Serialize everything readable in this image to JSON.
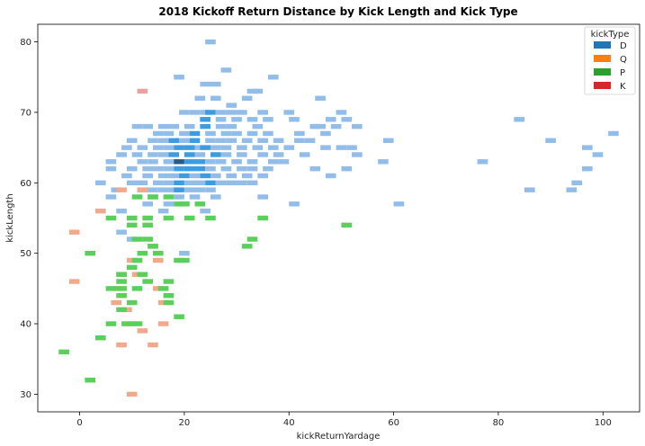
{
  "chart_data": {
    "type": "heatmap",
    "title": "2018 Kickoff Return Distance by Kick Length and Kick Type",
    "xlabel": "kickReturnYardage",
    "ylabel": "kickLength",
    "xlim": [
      -8,
      107
    ],
    "ylim": [
      27.5,
      82.5
    ],
    "xticks": [
      0,
      20,
      40,
      60,
      80,
      100
    ],
    "yticks": [
      30,
      40,
      50,
      60,
      70,
      80
    ],
    "grid": false,
    "legend": {
      "title": "kickType",
      "placement": "top-right",
      "entries": [
        {
          "label": "D",
          "color": "#1f77b4"
        },
        {
          "label": "Q",
          "color": "#ff7f0e"
        },
        {
          "label": "P",
          "color": "#2ca02c"
        },
        {
          "label": "K",
          "color": "#d62728"
        }
      ]
    },
    "series": [
      {
        "name": "D",
        "light_color": "#92bde9",
        "mid_color": "#3d9be0",
        "dark_color": "#2a5a82",
        "cells": [
          [
            25,
            80,
            1
          ],
          [
            28,
            76,
            1
          ],
          [
            19,
            75,
            1
          ],
          [
            37,
            75,
            1
          ],
          [
            24,
            74,
            1
          ],
          [
            26,
            74,
            1
          ],
          [
            33,
            73,
            1
          ],
          [
            34,
            73,
            1
          ],
          [
            23,
            72,
            1
          ],
          [
            26,
            72,
            1
          ],
          [
            32,
            72,
            1
          ],
          [
            46,
            72,
            1
          ],
          [
            29,
            71,
            1
          ],
          [
            20,
            70,
            1
          ],
          [
            22,
            70,
            1
          ],
          [
            24,
            70,
            1
          ],
          [
            25,
            70,
            2
          ],
          [
            27,
            70,
            1
          ],
          [
            29,
            70,
            1
          ],
          [
            31,
            70,
            1
          ],
          [
            35,
            70,
            1
          ],
          [
            40,
            70,
            1
          ],
          [
            50,
            70,
            1
          ],
          [
            24,
            69,
            2
          ],
          [
            27,
            69,
            1
          ],
          [
            30,
            69,
            1
          ],
          [
            33,
            69,
            1
          ],
          [
            36,
            69,
            1
          ],
          [
            41,
            69,
            1
          ],
          [
            48,
            69,
            1
          ],
          [
            51,
            69,
            1
          ],
          [
            84,
            69,
            1
          ],
          [
            11,
            68,
            1
          ],
          [
            13,
            68,
            1
          ],
          [
            16,
            68,
            1
          ],
          [
            18,
            68,
            1
          ],
          [
            21,
            68,
            1
          ],
          [
            24,
            68,
            2
          ],
          [
            27,
            68,
            1
          ],
          [
            29,
            68,
            1
          ],
          [
            34,
            68,
            1
          ],
          [
            45,
            68,
            1
          ],
          [
            46,
            68,
            1
          ],
          [
            49,
            68,
            1
          ],
          [
            53,
            68,
            1
          ],
          [
            15,
            67,
            1
          ],
          [
            17,
            67,
            1
          ],
          [
            20,
            67,
            1
          ],
          [
            22,
            67,
            2
          ],
          [
            25,
            67,
            1
          ],
          [
            28,
            67,
            1
          ],
          [
            30,
            67,
            1
          ],
          [
            33,
            67,
            1
          ],
          [
            36,
            67,
            1
          ],
          [
            42,
            67,
            1
          ],
          [
            47,
            67,
            1
          ],
          [
            102,
            67,
            1
          ],
          [
            10,
            66,
            1
          ],
          [
            14,
            66,
            1
          ],
          [
            16,
            66,
            1
          ],
          [
            18,
            66,
            2
          ],
          [
            20,
            66,
            1
          ],
          [
            22,
            66,
            2
          ],
          [
            25,
            66,
            1
          ],
          [
            27,
            66,
            1
          ],
          [
            29,
            66,
            1
          ],
          [
            32,
            66,
            1
          ],
          [
            35,
            66,
            1
          ],
          [
            38,
            66,
            1
          ],
          [
            42,
            66,
            1
          ],
          [
            44,
            66,
            1
          ],
          [
            59,
            66,
            1
          ],
          [
            90,
            66,
            1
          ],
          [
            9,
            65,
            1
          ],
          [
            12,
            65,
            1
          ],
          [
            15,
            65,
            1
          ],
          [
            17,
            65,
            1
          ],
          [
            19,
            65,
            2
          ],
          [
            21,
            65,
            2
          ],
          [
            23,
            65,
            1
          ],
          [
            24,
            65,
            2
          ],
          [
            26,
            65,
            1
          ],
          [
            28,
            65,
            1
          ],
          [
            31,
            65,
            1
          ],
          [
            34,
            65,
            1
          ],
          [
            37,
            65,
            1
          ],
          [
            40,
            65,
            1
          ],
          [
            47,
            65,
            1
          ],
          [
            50,
            65,
            1
          ],
          [
            52,
            65,
            1
          ],
          [
            97,
            65,
            1
          ],
          [
            8,
            64,
            1
          ],
          [
            11,
            64,
            1
          ],
          [
            14,
            64,
            1
          ],
          [
            16,
            64,
            1
          ],
          [
            18,
            64,
            2
          ],
          [
            21,
            64,
            2
          ],
          [
            23,
            64,
            1
          ],
          [
            26,
            64,
            2
          ],
          [
            28,
            64,
            1
          ],
          [
            31,
            64,
            1
          ],
          [
            35,
            64,
            1
          ],
          [
            38,
            64,
            1
          ],
          [
            43,
            64,
            1
          ],
          [
            53,
            64,
            1
          ],
          [
            99,
            64,
            1
          ],
          [
            6,
            63,
            1
          ],
          [
            12,
            63,
            1
          ],
          [
            14,
            63,
            1
          ],
          [
            17,
            63,
            1
          ],
          [
            19,
            63,
            3
          ],
          [
            21,
            63,
            2
          ],
          [
            23,
            63,
            2
          ],
          [
            25,
            63,
            1
          ],
          [
            27,
            63,
            1
          ],
          [
            30,
            63,
            1
          ],
          [
            33,
            63,
            1
          ],
          [
            37,
            63,
            1
          ],
          [
            39,
            63,
            1
          ],
          [
            58,
            63,
            1
          ],
          [
            77,
            63,
            1
          ],
          [
            6,
            62,
            1
          ],
          [
            10,
            62,
            1
          ],
          [
            13,
            62,
            1
          ],
          [
            15,
            62,
            1
          ],
          [
            17,
            62,
            1
          ],
          [
            19,
            62,
            2
          ],
          [
            21,
            62,
            2
          ],
          [
            23,
            62,
            2
          ],
          [
            25,
            62,
            1
          ],
          [
            28,
            62,
            1
          ],
          [
            31,
            62,
            1
          ],
          [
            33,
            62,
            1
          ],
          [
            36,
            62,
            1
          ],
          [
            45,
            62,
            1
          ],
          [
            51,
            62,
            1
          ],
          [
            97,
            62,
            1
          ],
          [
            9,
            61,
            1
          ],
          [
            13,
            61,
            1
          ],
          [
            16,
            61,
            1
          ],
          [
            18,
            61,
            1
          ],
          [
            20,
            61,
            2
          ],
          [
            22,
            61,
            1
          ],
          [
            24,
            61,
            2
          ],
          [
            26,
            61,
            1
          ],
          [
            29,
            61,
            1
          ],
          [
            32,
            61,
            1
          ],
          [
            35,
            61,
            1
          ],
          [
            48,
            61,
            1
          ],
          [
            4,
            60,
            1
          ],
          [
            10,
            60,
            1
          ],
          [
            12,
            60,
            1
          ],
          [
            15,
            60,
            1
          ],
          [
            17,
            60,
            1
          ],
          [
            19,
            60,
            2
          ],
          [
            21,
            60,
            1
          ],
          [
            23,
            60,
            1
          ],
          [
            25,
            60,
            2
          ],
          [
            27,
            60,
            1
          ],
          [
            29,
            60,
            1
          ],
          [
            31,
            60,
            1
          ],
          [
            33,
            60,
            1
          ],
          [
            95,
            60,
            1
          ],
          [
            7,
            59,
            1
          ],
          [
            12,
            59,
            1
          ],
          [
            14,
            59,
            1
          ],
          [
            16,
            59,
            1
          ],
          [
            18,
            59,
            1
          ],
          [
            19,
            59,
            2
          ],
          [
            21,
            59,
            1
          ],
          [
            23,
            59,
            1
          ],
          [
            25,
            59,
            1
          ],
          [
            86,
            59,
            1
          ],
          [
            94,
            59,
            1
          ],
          [
            6,
            58,
            1
          ],
          [
            14,
            58,
            1
          ],
          [
            19,
            58,
            1
          ],
          [
            22,
            58,
            1
          ],
          [
            26,
            58,
            1
          ],
          [
            35,
            58,
            1
          ],
          [
            13,
            57,
            1
          ],
          [
            17,
            57,
            1
          ],
          [
            20,
            57,
            1
          ],
          [
            41,
            57,
            1
          ],
          [
            61,
            57,
            1
          ],
          [
            8,
            56,
            1
          ],
          [
            16,
            56,
            1
          ],
          [
            24,
            56,
            1
          ],
          [
            8,
            53,
            1
          ],
          [
            10,
            52,
            1
          ],
          [
            20,
            50,
            1
          ]
        ]
      },
      {
        "name": "Q",
        "light_color": "#f2a98b",
        "cells": [
          [
            -1,
            53,
            1
          ],
          [
            -1,
            46,
            1
          ],
          [
            4,
            56,
            1
          ],
          [
            8,
            59,
            1
          ],
          [
            12,
            59,
            1
          ],
          [
            14,
            51,
            1
          ],
          [
            15,
            49,
            1
          ],
          [
            10,
            49,
            1
          ],
          [
            11,
            47,
            1
          ],
          [
            8,
            47,
            1
          ],
          [
            7,
            45,
            1
          ],
          [
            15,
            45,
            1
          ],
          [
            7,
            43,
            1
          ],
          [
            16,
            43,
            1
          ],
          [
            9,
            42,
            1
          ],
          [
            10,
            40,
            1
          ],
          [
            16,
            40,
            1
          ],
          [
            12,
            39,
            1
          ],
          [
            8,
            37,
            1
          ],
          [
            14,
            37,
            1
          ],
          [
            10,
            30,
            1
          ]
        ]
      },
      {
        "name": "P",
        "light_color": "#5bcf5b",
        "cells": [
          [
            11,
            58,
            1
          ],
          [
            14,
            58,
            1
          ],
          [
            17,
            58,
            1
          ],
          [
            19,
            57,
            1
          ],
          [
            20,
            57,
            1
          ],
          [
            23,
            57,
            1
          ],
          [
            6,
            55,
            1
          ],
          [
            10,
            55,
            1
          ],
          [
            13,
            55,
            1
          ],
          [
            17,
            55,
            1
          ],
          [
            21,
            55,
            1
          ],
          [
            25,
            55,
            1
          ],
          [
            35,
            55,
            1
          ],
          [
            10,
            54,
            1
          ],
          [
            13,
            54,
            1
          ],
          [
            51,
            54,
            1
          ],
          [
            11,
            52,
            1
          ],
          [
            13,
            52,
            1
          ],
          [
            33,
            52,
            1
          ],
          [
            14,
            51,
            1
          ],
          [
            32,
            51,
            1
          ],
          [
            2,
            50,
            1
          ],
          [
            12,
            50,
            1
          ],
          [
            15,
            50,
            1
          ],
          [
            11,
            49,
            1
          ],
          [
            19,
            49,
            1
          ],
          [
            20,
            49,
            1
          ],
          [
            10,
            48,
            1
          ],
          [
            8,
            47,
            1
          ],
          [
            12,
            47,
            1
          ],
          [
            8,
            46,
            1
          ],
          [
            13,
            46,
            1
          ],
          [
            17,
            46,
            1
          ],
          [
            6,
            45,
            1
          ],
          [
            8,
            45,
            1
          ],
          [
            11,
            45,
            1
          ],
          [
            16,
            45,
            1
          ],
          [
            8,
            44,
            1
          ],
          [
            17,
            44,
            1
          ],
          [
            10,
            43,
            1
          ],
          [
            17,
            43,
            1
          ],
          [
            8,
            42,
            1
          ],
          [
            19,
            41,
            1
          ],
          [
            6,
            40,
            1
          ],
          [
            9,
            40,
            1
          ],
          [
            11,
            40,
            1
          ],
          [
            4,
            38,
            1
          ],
          [
            -3,
            36,
            1
          ],
          [
            2,
            32,
            1
          ]
        ]
      },
      {
        "name": "K",
        "light_color": "#e8a2a2",
        "cells": [
          [
            12,
            73,
            1
          ]
        ]
      }
    ]
  }
}
